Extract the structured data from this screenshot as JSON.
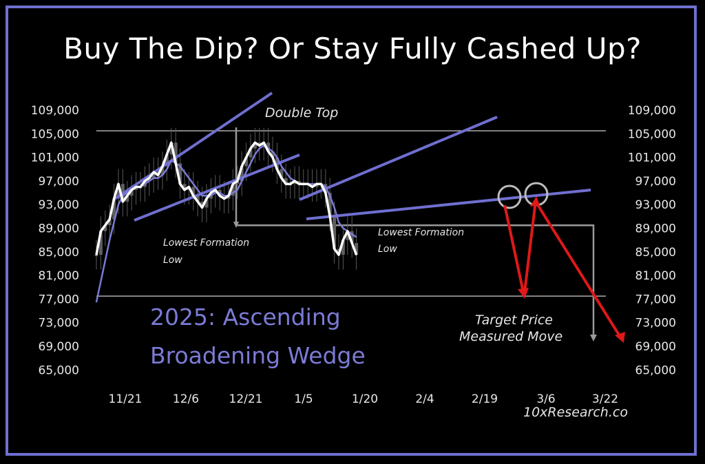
{
  "title": "Buy The Dip? Or Stay Fully Cashed Up?",
  "colors": {
    "background": "#000000",
    "frame": "#6f6fd0",
    "price_line": "#ffffff",
    "moving_average": "#7b7bd6",
    "trend_lines": "#6f6fd0",
    "down_arrows": "#e01818",
    "guides": "#cfcfcf"
  },
  "chart_data": {
    "type": "line",
    "title": "Buy The Dip? Or Stay Fully Cashed Up?",
    "xlabel": "",
    "ylabel": "",
    "ylim": [
      65000,
      109000
    ],
    "yticks": [
      "109,000",
      "105,000",
      "101,000",
      "97,000",
      "93,000",
      "89,000",
      "85,000",
      "81,000",
      "77,000",
      "73,000",
      "69,000",
      "65,000"
    ],
    "xticks": [
      "11/21",
      "12/6",
      "12/21",
      "1/5",
      "1/20",
      "2/4",
      "2/19",
      "3/6",
      "3/22"
    ],
    "x": [
      "11/12",
      "11/14",
      "11/16",
      "11/18",
      "11/20",
      "11/22",
      "11/24",
      "11/26",
      "11/28",
      "11/30",
      "12/2",
      "12/4",
      "12/6",
      "12/8",
      "12/10",
      "12/12",
      "12/14",
      "12/16",
      "12/18",
      "12/20",
      "12/22",
      "12/24",
      "12/26",
      "12/28",
      "12/30",
      "1/1",
      "1/3",
      "1/5",
      "1/7",
      "1/9",
      "1/11",
      "1/13",
      "1/15",
      "1/17",
      "1/19",
      "1/21",
      "1/23",
      "1/25",
      "1/27",
      "1/29",
      "1/31",
      "2/2",
      "2/4",
      "2/6",
      "2/8",
      "2/10",
      "2/12",
      "2/14",
      "2/16",
      "2/18",
      "2/20",
      "2/22",
      "2/24",
      "2/26",
      "2/28",
      "3/2",
      "3/4",
      "3/6",
      "3/8",
      "3/10"
    ],
    "series": [
      {
        "values": [
          84500,
          88500,
          89500,
          90500,
          94000,
          96500,
          93500,
          94500,
          95500,
          96000,
          96000,
          97000,
          97500,
          98500,
          98000,
          99500,
          101500,
          103500,
          100000,
          96500,
          95500,
          96000,
          94500,
          93500,
          92500,
          94000,
          95000,
          95500,
          94500,
          94000,
          94500,
          96500,
          97000,
          99500,
          101000,
          102500,
          103500,
          103000,
          103500,
          102000,
          101000,
          99000,
          97500,
          96500,
          96500,
          97000,
          96500,
          96500,
          96500,
          96000,
          96500,
          96500,
          95000,
          91000,
          85500,
          84500,
          87000,
          88500,
          86500,
          84500
        ]
      },
      {
        "values": [
          76500,
          80000,
          83500,
          87000,
          90000,
          93000,
          94500,
          95000,
          95500,
          96000,
          96000,
          96500,
          97000,
          97500,
          97500,
          98000,
          99000,
          100500,
          100000,
          99500,
          98500,
          97500,
          96500,
          95500,
          94500,
          94500,
          94500,
          95000,
          95000,
          94500,
          94500,
          95000,
          95500,
          97000,
          98500,
          100000,
          101500,
          102500,
          103000,
          102500,
          102000,
          101000,
          99500,
          98500,
          97500,
          97000,
          96500,
          96500,
          96500,
          96500,
          96500,
          96500,
          96000,
          94500,
          92500,
          90000,
          89000,
          88500,
          88000,
          87500
        ]
      }
    ],
    "annotations": {
      "double_top": "Double Top",
      "lowest_formation_1": [
        "Lowest Formation",
        "Low"
      ],
      "lowest_formation_2": [
        "Lowest Formation",
        "Low"
      ],
      "pattern_label": [
        "2025: Ascending",
        "Broadening Wedge"
      ],
      "target": [
        "Target Price",
        "Measured Move"
      ],
      "source": "10xResearch.co"
    },
    "reference_levels": [
      105500,
      77500,
      89500
    ]
  }
}
